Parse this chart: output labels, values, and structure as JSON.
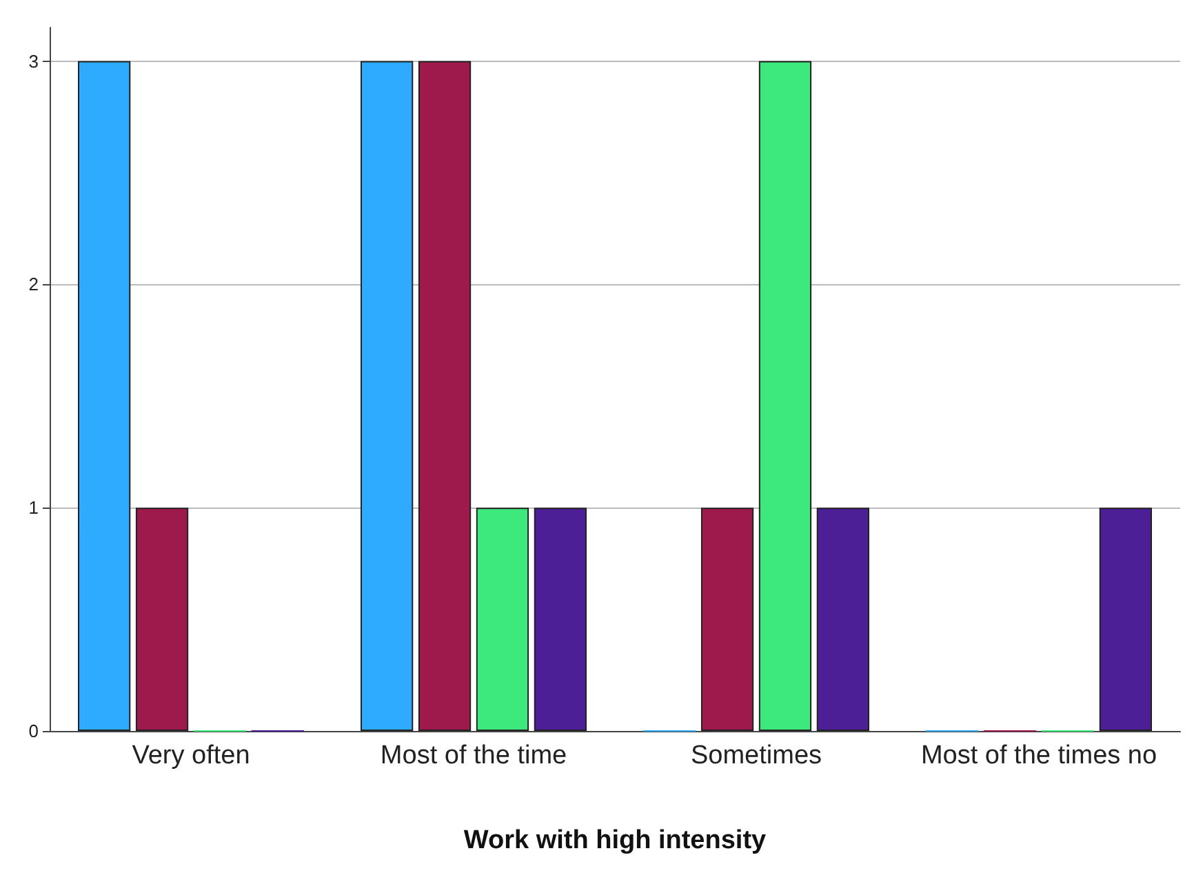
{
  "chart_data": {
    "type": "bar",
    "xlabel": "Work with high intensity",
    "categories": [
      "Very often",
      "Most of the time",
      "Sometimes",
      "Most of the times no"
    ],
    "series": [
      {
        "color": "#2eaaff",
        "values": [
          3,
          3,
          0,
          0
        ]
      },
      {
        "color": "#9e1a4c",
        "values": [
          1,
          3,
          1,
          0
        ]
      },
      {
        "color": "#3de87c",
        "values": [
          0,
          1,
          3,
          0
        ]
      },
      {
        "color": "#4d1f96",
        "values": [
          0,
          1,
          1,
          1
        ]
      }
    ],
    "ylim": [
      0,
      3.15
    ],
    "yticks": [
      0,
      1,
      2,
      3
    ],
    "grid": "y"
  }
}
